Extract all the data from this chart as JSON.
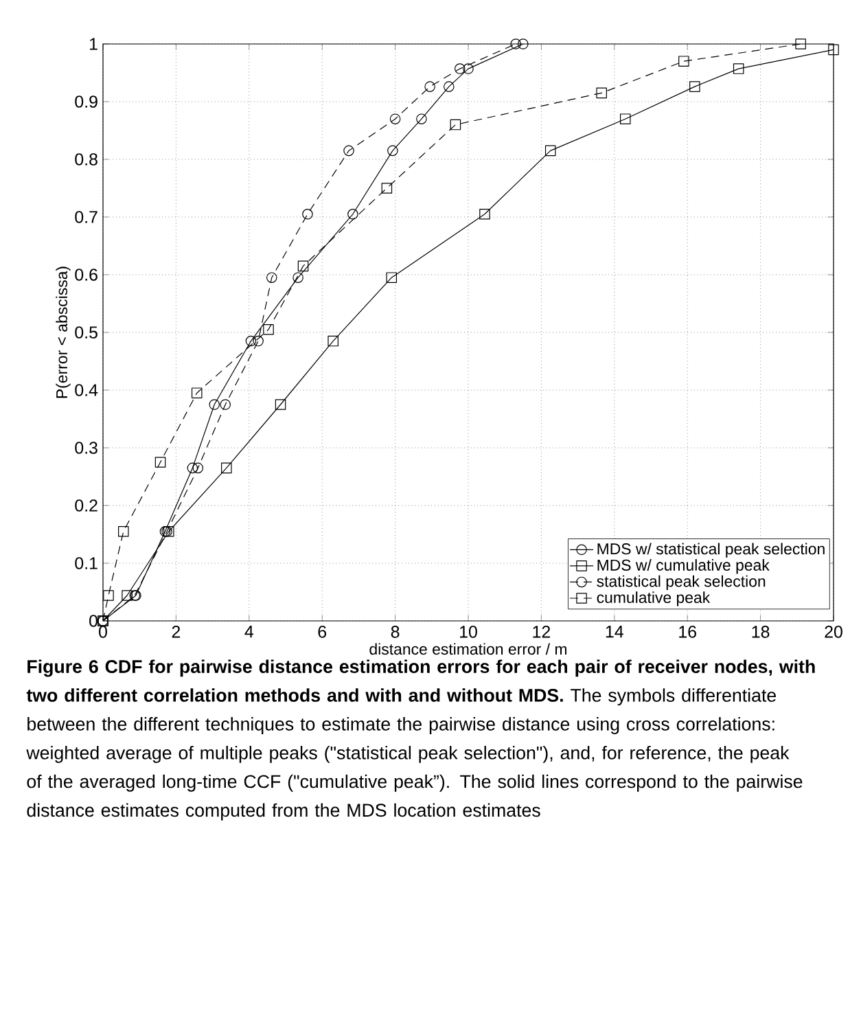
{
  "chart_data": {
    "type": "line",
    "title": "Figure 6 CDF for pairwise distance estimation errors for each pair of receiver nodes, with two different correlation methods and with and without MDS.",
    "subtitle": "The symbols differentiate between the different techniques to estimate the pairwise distance using cross correlations: weighted average of multiple peaks (\"statistical peak selection\"), and, for reference, the peak of the averaged long-time CCF (\"cumulative peak”). The solid lines correspond to the pairwise distance estimates computed from the MDS location estimates",
    "xlabel": "distance estimation error / m",
    "ylabel": "P(error < abscissa)",
    "xlim": [
      0,
      20
    ],
    "ylim": [
      0,
      1
    ],
    "xticks": [
      0,
      2,
      4,
      6,
      8,
      10,
      12,
      14,
      16,
      18,
      20
    ],
    "yticks": [
      0,
      0.1,
      0.2,
      0.3,
      0.4,
      0.5,
      0.6,
      0.7,
      0.8,
      0.9,
      1
    ],
    "grid": true,
    "legend": "bottom right",
    "series": [
      {
        "name": "MDS w/ statistical peak selection",
        "color": "#000000",
        "marker": "circle",
        "line_style": "solid",
        "x": [
          0,
          0.9,
          1.7,
          2.45,
          3.05,
          4.05,
          5.34,
          6.84,
          7.93,
          8.72,
          9.47,
          10.0,
          11.5
        ],
        "values": [
          0,
          0.044,
          0.155,
          0.265,
          0.375,
          0.485,
          0.595,
          0.705,
          0.815,
          0.87,
          0.926,
          0.957,
          1
        ]
      },
      {
        "name": "MDS w/ cumulative peak",
        "color": "#000000",
        "marker": "square",
        "line_style": "solid",
        "x": [
          0,
          0.66,
          1.8,
          3.38,
          4.86,
          6.3,
          7.9,
          10.45,
          12.25,
          14.3,
          16.2,
          17.4,
          20
        ],
        "values": [
          0,
          0.044,
          0.155,
          0.265,
          0.375,
          0.485,
          0.595,
          0.705,
          0.815,
          0.87,
          0.926,
          0.957,
          0.99
        ]
      },
      {
        "name": "statistical peak selection",
        "color": "#000000",
        "marker": "circle",
        "line_style": "dashed",
        "x": [
          0,
          0.87,
          1.75,
          2.6,
          3.35,
          4.25,
          4.62,
          5.6,
          6.73,
          8.0,
          8.95,
          9.77,
          11.3
        ],
        "values": [
          0,
          0.044,
          0.155,
          0.265,
          0.375,
          0.485,
          0.595,
          0.705,
          0.815,
          0.87,
          0.926,
          0.957,
          1
        ]
      },
      {
        "name": "cumulative peak",
        "color": "#000000",
        "marker": "square",
        "line_style": "dashed",
        "x": [
          0,
          0.15,
          0.56,
          1.57,
          2.57,
          4.53,
          5.48,
          7.77,
          9.65,
          13.65,
          15.9,
          19.1
        ],
        "values": [
          0,
          0.044,
          0.155,
          0.275,
          0.395,
          0.505,
          0.615,
          0.75,
          0.86,
          0.915,
          0.97,
          1
        ]
      }
    ]
  }
}
